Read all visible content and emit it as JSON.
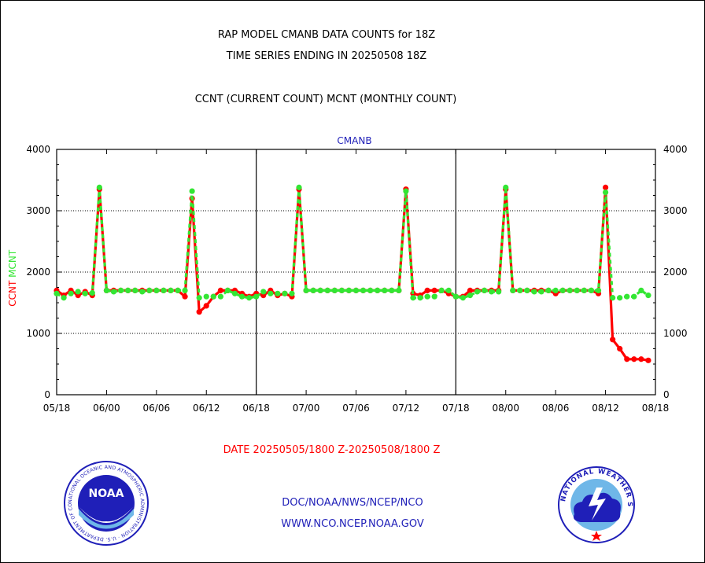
{
  "header": {
    "title_line1": "RAP MODEL CMANB DATA COUNTS for 18Z",
    "title_line2": "TIME SERIES ENDING IN 20250508 18Z",
    "subtitle": "CCNT (CURRENT COUNT) MCNT (MONTHLY COUNT)"
  },
  "chart_data": {
    "type": "line",
    "title": "CMANB",
    "ylabel_left_ccnt": "CCNT",
    "ylabel_left_mcnt": "MCNT",
    "ylim": [
      0,
      4000
    ],
    "yticks": [
      0,
      1000,
      2000,
      3000,
      4000
    ],
    "yticklabels": [
      "0",
      "1000",
      "2000",
      "3000",
      "4000"
    ],
    "xticklabels": [
      "05/18",
      "06/00",
      "06/06",
      "06/12",
      "06/18",
      "07/00",
      "07/06",
      "07/12",
      "07/18",
      "08/00",
      "08/06",
      "08/12",
      "08/18"
    ],
    "grid": "dotted horizontal at 1000, 2000, 3000; solid vertical at 06/18 and 07/18",
    "colors": {
      "ccnt": "#ff0000",
      "mcnt": "#33e633",
      "axis": "#000000",
      "title": "#1f1fb8"
    },
    "series": [
      {
        "name": "CCNT",
        "values": [
          1700,
          1620,
          1700,
          1620,
          1680,
          1620,
          3350,
          1700,
          1700,
          1700,
          1700,
          1700,
          1700,
          1700,
          1700,
          1700,
          1700,
          1700,
          1600,
          3200,
          1350,
          1450,
          1600,
          1700,
          1700,
          1700,
          1650,
          1600,
          1650,
          1620,
          1700,
          1620,
          1650,
          1600,
          3350,
          1700,
          1700,
          1700,
          1700,
          1700,
          1700,
          1700,
          1700,
          1700,
          1700,
          1700,
          1700,
          1700,
          1700,
          3350,
          1650,
          1620,
          1700,
          1700,
          1700,
          1650,
          1600,
          1600,
          1700,
          1700,
          1700,
          1700,
          1700,
          3350,
          1700,
          1700,
          1700,
          1700,
          1700,
          1700,
          1650,
          1700,
          1700,
          1700,
          1700,
          1700,
          1650,
          3380,
          900,
          750,
          580,
          580,
          580,
          560
        ]
      },
      {
        "name": "MCNT",
        "values": [
          1650,
          1580,
          1650,
          1680,
          1650,
          1660,
          3380,
          1700,
          1680,
          1700,
          1700,
          1700,
          1680,
          1700,
          1700,
          1700,
          1700,
          1700,
          1700,
          3320,
          1580,
          1600,
          1600,
          1600,
          1700,
          1650,
          1600,
          1580,
          1600,
          1680,
          1650,
          1650,
          1650,
          1650,
          3380,
          1700,
          1700,
          1700,
          1700,
          1700,
          1700,
          1700,
          1700,
          1700,
          1700,
          1700,
          1700,
          1700,
          1700,
          3320,
          1580,
          1580,
          1600,
          1600,
          1700,
          1700,
          1600,
          1580,
          1620,
          1680,
          1700,
          1680,
          1680,
          3380,
          1700,
          1700,
          1700,
          1680,
          1680,
          1700,
          1700,
          1700,
          1700,
          1700,
          1700,
          1700,
          1700,
          3300,
          1580,
          1580,
          1600,
          1600,
          1700,
          1620
        ]
      }
    ]
  },
  "date_range": "DATE 20250505/1800 Z-20250508/1800 Z",
  "footer": {
    "line1": "DOC/NOAA/NWS/NCEP/NCO",
    "line2": "WWW.NCO.NCEP.NOAA.GOV",
    "noaa_text": "NOAA",
    "noaa_ring_text": "NATIONAL OCEANIC AND ATMOSPHERIC ADMINISTRATION · U.S. DEPARTMENT OF COMMERCE",
    "nws_ring_text": "NATIONAL WEATHER SERVICE"
  }
}
